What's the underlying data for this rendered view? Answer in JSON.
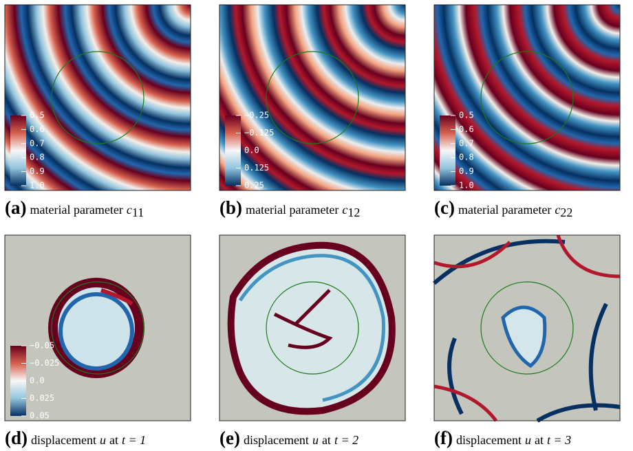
{
  "panels": [
    {
      "label": "(a)",
      "text": "material parameter",
      "symbol": "c",
      "subscript": "11",
      "colorbar": [
        "0.5",
        "0.6",
        "0.7",
        "0.8",
        "0.9",
        "1.0"
      ]
    },
    {
      "label": "(b)",
      "text": "material parameter",
      "symbol": "c",
      "subscript": "12",
      "colorbar": [
        "−0.25",
        "−0.125",
        "0.0",
        "0.125",
        "0.25"
      ]
    },
    {
      "label": "(c)",
      "text": "material parameter",
      "symbol": "c",
      "subscript": "22",
      "colorbar": [
        "0.5",
        "0.6",
        "0.7",
        "0.8",
        "0.9",
        "1.0"
      ]
    },
    {
      "label": "(d)",
      "text": "displacement",
      "symbol": "u",
      "connector": "at",
      "equation": "t = 1",
      "colorbar": [
        "−0.05",
        "−0.025",
        "0.0",
        "0.025",
        "0.05"
      ]
    },
    {
      "label": "(e)",
      "text": "displacement",
      "symbol": "u",
      "connector": "at",
      "equation": "t = 2"
    },
    {
      "label": "(f)",
      "text": "displacement",
      "symbol": "u",
      "connector": "at",
      "equation": "t = 3"
    }
  ]
}
